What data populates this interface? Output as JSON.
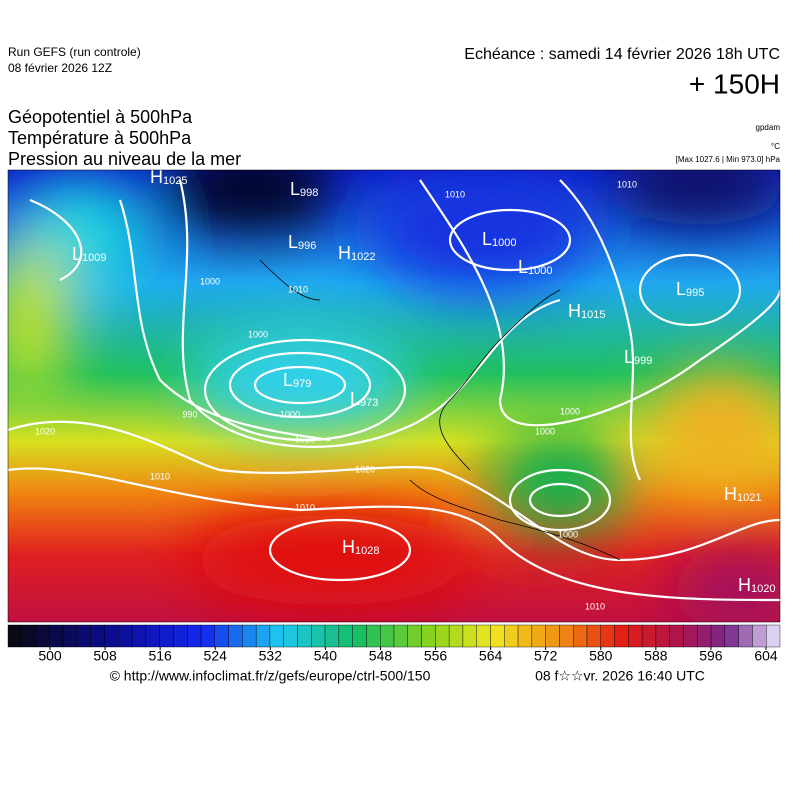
{
  "header": {
    "run": "Run GEFS (run controle)",
    "run_date": "08 février 2026 12Z",
    "valid": "Echéance : samedi 14 février 2026 18h UTC",
    "lead": "+ 150H"
  },
  "fields": [
    "Géopotentiel à 500hPa",
    "Température à 500hPa",
    "Pression au niveau de la mer"
  ],
  "units": {
    "geopotential": "gpdam",
    "temperature": "°C",
    "pressure": "[Max 1027.6 | Min 973.0] hPa"
  },
  "centers": [
    {
      "letter": "H",
      "value": "1025"
    },
    {
      "letter": "L",
      "value": "998"
    },
    {
      "letter": "L",
      "value": "1009"
    },
    {
      "letter": "L",
      "value": "996"
    },
    {
      "letter": "H",
      "value": "1022"
    },
    {
      "letter": "L",
      "value": "1000"
    },
    {
      "letter": "L",
      "value": "1000"
    },
    {
      "letter": "L",
      "value": "995"
    },
    {
      "letter": "H",
      "value": "1015"
    },
    {
      "letter": "L",
      "value": "999"
    },
    {
      "letter": "L",
      "value": "979"
    },
    {
      "letter": "L",
      "value": "973"
    },
    {
      "letter": "H",
      "value": "1021"
    },
    {
      "letter": "H",
      "value": "1028"
    },
    {
      "letter": "H",
      "value": "1020"
    }
  ],
  "isobar_labels": [
    "1010",
    "1000",
    "1010",
    "1000",
    "990",
    "1000",
    "1010",
    "1020",
    "1020",
    "1010",
    "1010",
    "1000",
    "1000",
    "1000",
    "1010",
    "1010"
  ],
  "colorbar": {
    "ticks": [
      500,
      508,
      516,
      524,
      532,
      540,
      548,
      556,
      564,
      572,
      580,
      588,
      596,
      604
    ]
  },
  "footer": {
    "source": "© http://www.infoclimat.fr/z/gefs/europe/ctrl-500/150",
    "generated": "08 f☆☆vr. 2026 16:40 UTC"
  }
}
